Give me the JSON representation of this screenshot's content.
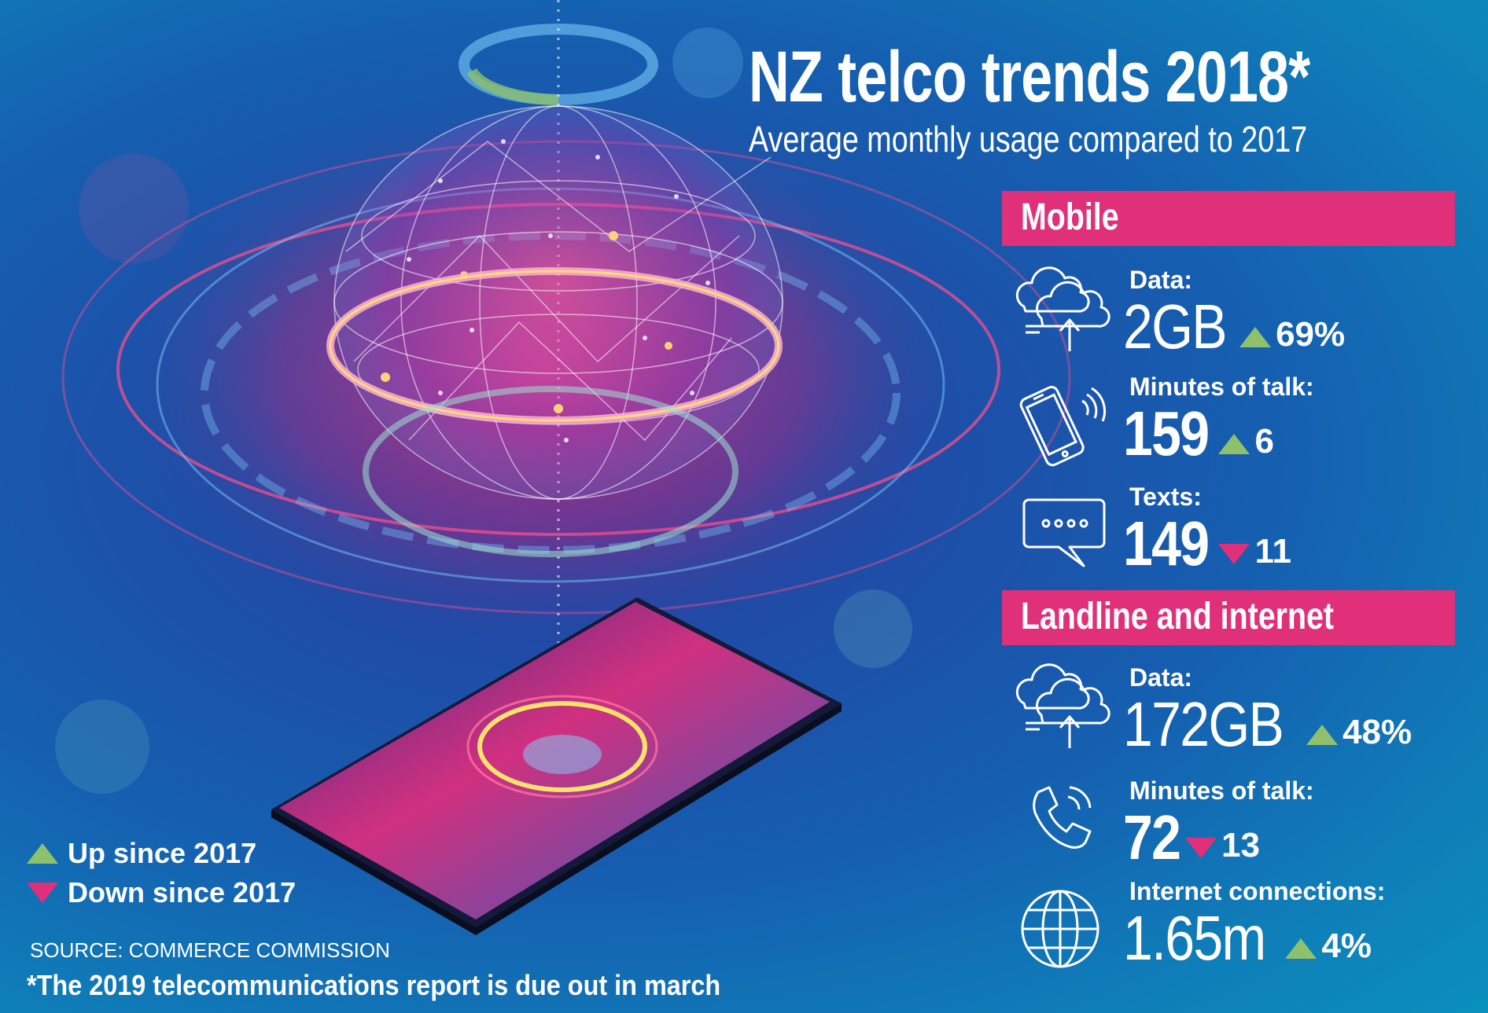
{
  "header": {
    "title": "NZ telco trends 2018*",
    "subtitle": "Average monthly usage compared to 2017"
  },
  "mobile": {
    "heading": "Mobile",
    "data": {
      "label": "Data:",
      "value": "2GB",
      "direction": "up",
      "change": "69%",
      "icon": "cloud-transfer-icon"
    },
    "talk": {
      "label": "Minutes of talk:",
      "value": "159",
      "direction": "up",
      "change": "6",
      "icon": "mobile-phone-icon"
    },
    "texts": {
      "label": "Texts:",
      "value": "149",
      "direction": "down",
      "change": "11",
      "icon": "speech-bubble-icon"
    }
  },
  "landline": {
    "heading": "Landline and internet",
    "data": {
      "label": "Data:",
      "value": "172GB",
      "direction": "up",
      "change": "48%",
      "icon": "cloud-transfer-icon"
    },
    "talk": {
      "label": "Minutes of talk:",
      "value": "72",
      "direction": "down",
      "change": "13",
      "icon": "phone-handset-icon"
    },
    "connections": {
      "label": "Internet connections:",
      "value": "1.65m",
      "direction": "up",
      "change": "4%",
      "icon": "globe-icon"
    }
  },
  "legend": {
    "up": "Up since 2017",
    "down": "Down since 2017"
  },
  "source": "SOURCE: COMMERCE COMMISSION",
  "footnote": "*The 2019 telecommunications report is due out in march",
  "colors": {
    "accent_pink": "#e0307a",
    "up_green": "#8fc06b",
    "down_pink": "#e0307a",
    "background_blue": "#155fb0"
  }
}
